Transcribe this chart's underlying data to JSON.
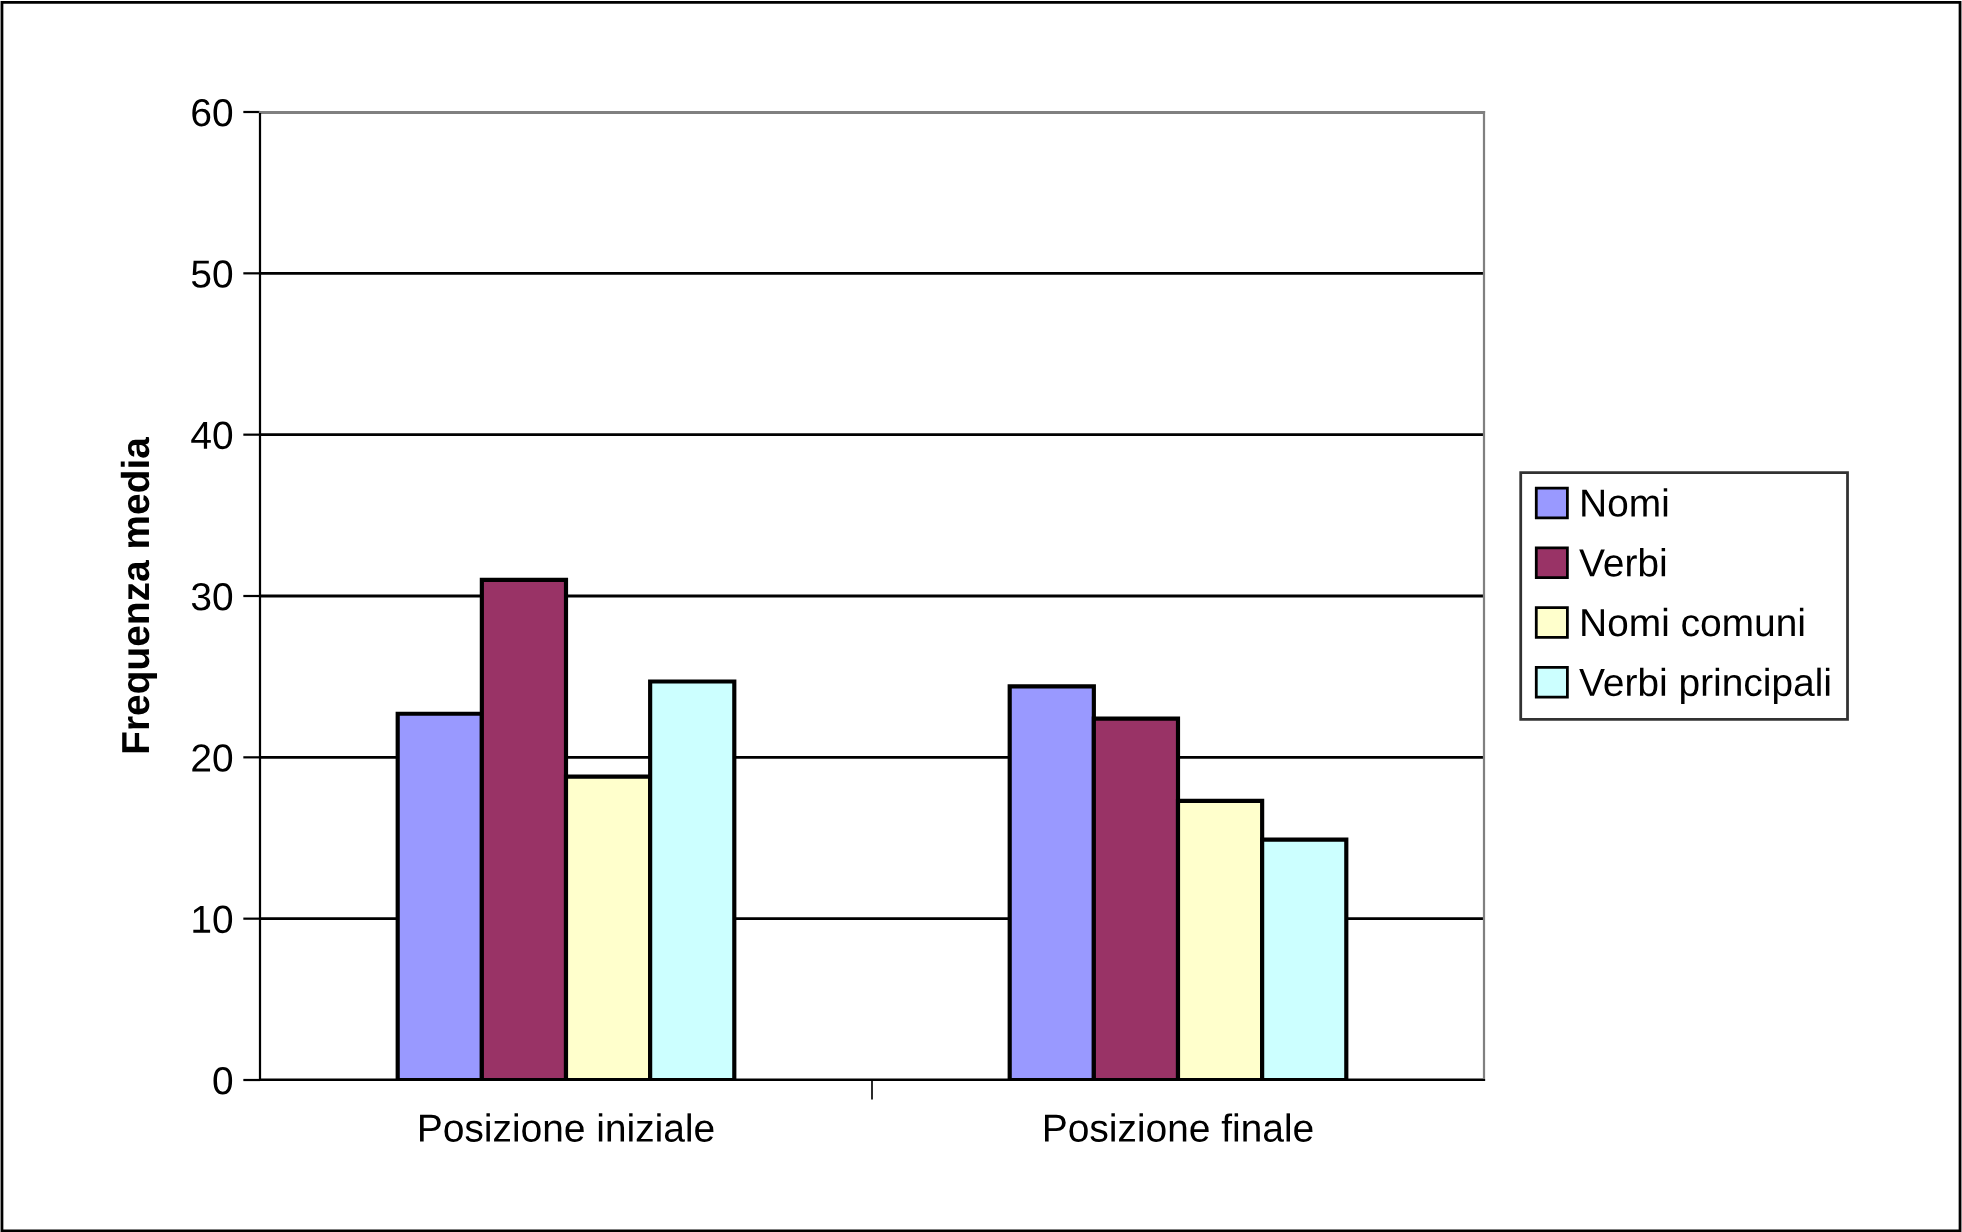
{
  "chart_data": {
    "type": "bar",
    "ylabel": "Frequenza media",
    "categories": [
      "Posizione iniziale",
      "Posizione finale"
    ],
    "series": [
      {
        "name": "Nomi",
        "color": "#9999ff",
        "values": [
          22.7,
          24.4
        ]
      },
      {
        "name": "Verbi",
        "color": "#993366",
        "values": [
          31.0,
          22.4
        ]
      },
      {
        "name": "Nomi comuni",
        "color": "#ffffcc",
        "values": [
          18.8,
          17.3
        ]
      },
      {
        "name": "Verbi principali",
        "color": "#ccffff",
        "values": [
          24.7,
          14.9
        ]
      }
    ],
    "ylim": [
      0,
      60
    ],
    "yticks": [
      0,
      10,
      20,
      30,
      40,
      50,
      60
    ],
    "grid": "y",
    "legend": "right"
  }
}
